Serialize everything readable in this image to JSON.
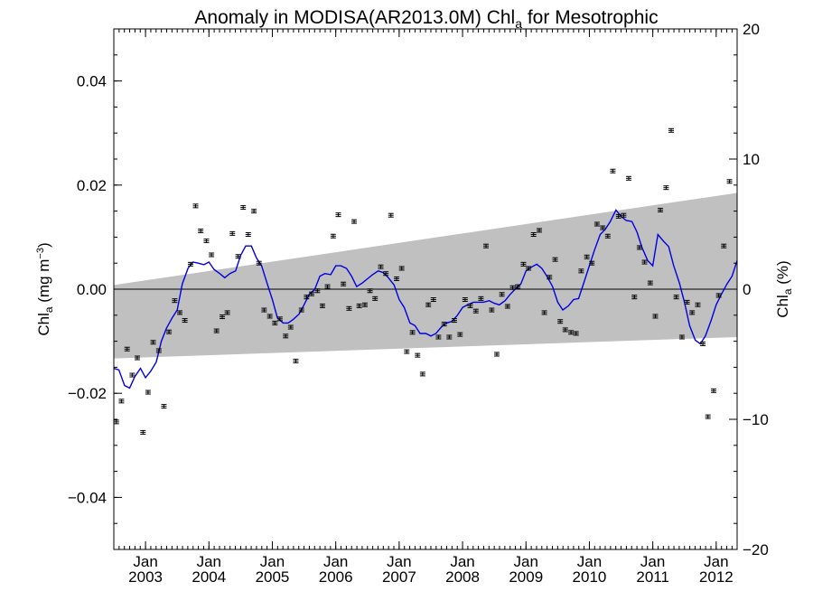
{
  "chart_data": {
    "type": "line",
    "title": {
      "main": "Anomaly in MODISA(AR2013.0M) Chl",
      "sub": "a",
      "tail": " for Mesotrophic"
    },
    "ylabel_left": {
      "main": "Chl",
      "sub": "a",
      "units": " (mg m",
      "sup": "−3",
      "close": ")"
    },
    "ylabel_right": {
      "main": "Chl",
      "sub": "a",
      "units": " (%)"
    },
    "xlim": [
      2002.5,
      2012.33
    ],
    "ylim": [
      -0.05,
      0.05
    ],
    "ylim_right": [
      -20,
      20
    ],
    "x_ticks": [
      {
        "month": "Jan",
        "year": "2003",
        "x": 2003.0
      },
      {
        "month": "Jan",
        "year": "2004",
        "x": 2004.0
      },
      {
        "month": "Jan",
        "year": "2005",
        "x": 2005.0
      },
      {
        "month": "Jan",
        "year": "2006",
        "x": 2006.0
      },
      {
        "month": "Jan",
        "year": "2007",
        "x": 2007.0
      },
      {
        "month": "Jan",
        "year": "2008",
        "x": 2008.0
      },
      {
        "month": "Jan",
        "year": "2009",
        "x": 2009.0
      },
      {
        "month": "Jan",
        "year": "2010",
        "x": 2010.0
      },
      {
        "month": "Jan",
        "year": "2011",
        "x": 2011.0
      },
      {
        "month": "Jan",
        "year": "2012",
        "x": 2012.0
      }
    ],
    "y_ticks_left": [
      {
        "value": 0.04,
        "label": "0.04"
      },
      {
        "value": 0.02,
        "label": "0.02"
      },
      {
        "value": 0.0,
        "label": "0.00"
      },
      {
        "value": -0.02,
        "label": "−0.02"
      },
      {
        "value": -0.04,
        "label": "−0.04"
      }
    ],
    "y_ticks_right": [
      {
        "value": 20,
        "label": "20"
      },
      {
        "value": 10,
        "label": "10"
      },
      {
        "value": 0,
        "label": "0"
      },
      {
        "value": -10,
        "label": "−10"
      },
      {
        "value": -20,
        "label": "−20"
      }
    ],
    "trend_band": {
      "x": [
        2002.5,
        2012.33
      ],
      "upper": [
        0.0008,
        0.0185
      ],
      "lower": [
        -0.0133,
        -0.0092
      ]
    },
    "series": [
      {
        "style": "points-with-errorbars",
        "color": "#000000",
        "points": [
          [
            2002.54,
            -0.0255
          ],
          [
            2002.62,
            -0.0215
          ],
          [
            2002.71,
            -0.0115
          ],
          [
            2002.79,
            -0.0165
          ],
          [
            2002.87,
            -0.0132
          ],
          [
            2002.96,
            -0.0275
          ],
          [
            2003.04,
            -0.0198
          ],
          [
            2003.12,
            -0.0102
          ],
          [
            2003.21,
            -0.0118
          ],
          [
            2003.29,
            -0.0225
          ],
          [
            2003.37,
            -0.0082
          ],
          [
            2003.46,
            -0.0022
          ],
          [
            2003.54,
            -0.0045
          ],
          [
            2003.62,
            -0.006
          ],
          [
            2003.71,
            0.0048
          ],
          [
            2003.79,
            0.016
          ],
          [
            2003.87,
            0.0112
          ],
          [
            2003.96,
            0.0093
          ],
          [
            2004.04,
            0.0066
          ],
          [
            2004.12,
            -0.008
          ],
          [
            2004.21,
            -0.0053
          ],
          [
            2004.29,
            -0.0045
          ],
          [
            2004.37,
            0.0107
          ],
          [
            2004.46,
            0.0063
          ],
          [
            2004.54,
            0.0157
          ],
          [
            2004.62,
            0.0105
          ],
          [
            2004.71,
            0.015
          ],
          [
            2004.79,
            0.005
          ],
          [
            2004.87,
            -0.004
          ],
          [
            2004.96,
            -0.0052
          ],
          [
            2005.04,
            -0.0065
          ],
          [
            2005.12,
            -0.0057
          ],
          [
            2005.21,
            -0.009
          ],
          [
            2005.29,
            -0.0073
          ],
          [
            2005.37,
            -0.0138
          ],
          [
            2005.46,
            -0.004
          ],
          [
            2005.54,
            -0.0015
          ],
          [
            2005.62,
            -0.0009
          ],
          [
            2005.71,
            -0.0003
          ],
          [
            2005.79,
            -0.0032
          ],
          [
            2005.87,
            0.0005
          ],
          [
            2005.96,
            0.0102
          ],
          [
            2006.04,
            0.0143
          ],
          [
            2006.12,
            0.001
          ],
          [
            2006.21,
            -0.0037
          ],
          [
            2006.29,
            0.013
          ],
          [
            2006.37,
            -0.0032
          ],
          [
            2006.46,
            -0.003
          ],
          [
            2006.54,
            -0.0003
          ],
          [
            2006.62,
            -0.0018
          ],
          [
            2006.71,
            0.0043
          ],
          [
            2006.79,
            0.003
          ],
          [
            2006.87,
            0.0142
          ],
          [
            2006.96,
            0.002
          ],
          [
            2007.04,
            0.004
          ],
          [
            2007.12,
            -0.012
          ],
          [
            2007.21,
            -0.0083
          ],
          [
            2007.29,
            -0.0127
          ],
          [
            2007.37,
            -0.0163
          ],
          [
            2007.46,
            -0.003
          ],
          [
            2007.54,
            -0.002
          ],
          [
            2007.62,
            -0.0092
          ],
          [
            2007.71,
            -0.0067
          ],
          [
            2007.79,
            -0.0092
          ],
          [
            2007.87,
            -0.006
          ],
          [
            2007.96,
            -0.0087
          ],
          [
            2008.04,
            -0.002
          ],
          [
            2008.12,
            -0.0032
          ],
          [
            2008.21,
            -0.0042
          ],
          [
            2008.29,
            -0.0018
          ],
          [
            2008.37,
            0.0083
          ],
          [
            2008.46,
            -0.004
          ],
          [
            2008.54,
            -0.0125
          ],
          [
            2008.62,
            -0.001
          ],
          [
            2008.71,
            -0.0033
          ],
          [
            2008.79,
            0.0003
          ],
          [
            2008.87,
            0.0005
          ],
          [
            2008.96,
            0.0048
          ],
          [
            2009.04,
            0.004
          ],
          [
            2009.12,
            0.0105
          ],
          [
            2009.21,
            0.0113
          ],
          [
            2009.29,
            -0.0045
          ],
          [
            2009.37,
            0.0023
          ],
          [
            2009.46,
            0.0057
          ],
          [
            2009.54,
            -0.0062
          ],
          [
            2009.62,
            -0.0078
          ],
          [
            2009.71,
            -0.0083
          ],
          [
            2009.79,
            -0.0085
          ],
          [
            2009.87,
            0.0035
          ],
          [
            2009.96,
            0.0062
          ],
          [
            2010.04,
            0.005
          ],
          [
            2010.12,
            0.0125
          ],
          [
            2010.21,
            0.0118
          ],
          [
            2010.29,
            0.0102
          ],
          [
            2010.37,
            0.0227
          ],
          [
            2010.46,
            0.014
          ],
          [
            2010.54,
            0.0142
          ],
          [
            2010.62,
            0.0213
          ],
          [
            2010.71,
            -0.0015
          ],
          [
            2010.79,
            0.008
          ],
          [
            2010.87,
            0.0052
          ],
          [
            2010.96,
            0.0012
          ],
          [
            2011.04,
            -0.0052
          ],
          [
            2011.12,
            0.0152
          ],
          [
            2011.21,
            0.0195
          ],
          [
            2011.29,
            0.0305
          ],
          [
            2011.37,
            -0.0015
          ],
          [
            2011.46,
            -0.0092
          ],
          [
            2011.54,
            -0.0025
          ],
          [
            2011.62,
            -0.0045
          ],
          [
            2011.71,
            -0.003
          ],
          [
            2011.79,
            -0.0105
          ],
          [
            2011.87,
            -0.0245
          ],
          [
            2011.96,
            -0.0195
          ],
          [
            2012.04,
            -0.0012
          ],
          [
            2012.12,
            0.0083
          ],
          [
            2012.21,
            0.0207
          ]
        ]
      },
      {
        "style": "line",
        "color": "#0000e0",
        "points": [
          [
            2002.5,
            -0.0152
          ],
          [
            2002.58,
            -0.0155
          ],
          [
            2002.67,
            -0.0185
          ],
          [
            2002.75,
            -0.019
          ],
          [
            2002.83,
            -0.0168
          ],
          [
            2002.92,
            -0.0152
          ],
          [
            2003.0,
            -0.017
          ],
          [
            2003.08,
            -0.0158
          ],
          [
            2003.17,
            -0.014
          ],
          [
            2003.25,
            -0.01
          ],
          [
            2003.33,
            -0.0075
          ],
          [
            2003.42,
            -0.0055
          ],
          [
            2003.5,
            -0.004
          ],
          [
            2003.58,
            0.001
          ],
          [
            2003.67,
            0.004
          ],
          [
            2003.75,
            0.0052
          ],
          [
            2003.83,
            0.005
          ],
          [
            2003.92,
            0.0047
          ],
          [
            2004.0,
            0.0052
          ],
          [
            2004.08,
            0.0038
          ],
          [
            2004.17,
            0.003
          ],
          [
            2004.25,
            0.0022
          ],
          [
            2004.33,
            0.003
          ],
          [
            2004.42,
            0.0035
          ],
          [
            2004.5,
            0.0065
          ],
          [
            2004.58,
            0.0083
          ],
          [
            2004.67,
            0.0083
          ],
          [
            2004.75,
            0.006
          ],
          [
            2004.83,
            0.0045
          ],
          [
            2004.92,
            0.001
          ],
          [
            2005.0,
            -0.002
          ],
          [
            2005.08,
            -0.0055
          ],
          [
            2005.17,
            -0.0065
          ],
          [
            2005.25,
            -0.0065
          ],
          [
            2005.33,
            -0.0058
          ],
          [
            2005.42,
            -0.0048
          ],
          [
            2005.5,
            -0.003
          ],
          [
            2005.58,
            -0.001
          ],
          [
            2005.67,
            0.0
          ],
          [
            2005.75,
            0.0025
          ],
          [
            2005.83,
            0.003
          ],
          [
            2005.92,
            0.0028
          ],
          [
            2006.0,
            0.0045
          ],
          [
            2006.08,
            0.0045
          ],
          [
            2006.17,
            0.004
          ],
          [
            2006.25,
            0.0025
          ],
          [
            2006.33,
            0.0005
          ],
          [
            2006.42,
            0.0012
          ],
          [
            2006.5,
            0.002
          ],
          [
            2006.58,
            0.0028
          ],
          [
            2006.67,
            0.0035
          ],
          [
            2006.75,
            0.0032
          ],
          [
            2006.83,
            0.0022
          ],
          [
            2006.92,
            0.0008
          ],
          [
            2007.0,
            -0.002
          ],
          [
            2007.08,
            -0.0035
          ],
          [
            2007.17,
            -0.0065
          ],
          [
            2007.25,
            -0.007
          ],
          [
            2007.33,
            -0.0085
          ],
          [
            2007.42,
            -0.0085
          ],
          [
            2007.5,
            -0.009
          ],
          [
            2007.58,
            -0.0085
          ],
          [
            2007.67,
            -0.0072
          ],
          [
            2007.75,
            -0.0065
          ],
          [
            2007.83,
            -0.0062
          ],
          [
            2007.92,
            -0.005
          ],
          [
            2008.0,
            -0.0035
          ],
          [
            2008.08,
            -0.003
          ],
          [
            2008.17,
            -0.0025
          ],
          [
            2008.25,
            -0.0025
          ],
          [
            2008.33,
            -0.0025
          ],
          [
            2008.42,
            -0.0022
          ],
          [
            2008.5,
            -0.0027
          ],
          [
            2008.58,
            -0.003
          ],
          [
            2008.67,
            -0.0022
          ],
          [
            2008.75,
            -0.001
          ],
          [
            2008.83,
            0.0
          ],
          [
            2008.92,
            0.001
          ],
          [
            2009.0,
            0.0035
          ],
          [
            2009.08,
            0.0042
          ],
          [
            2009.17,
            0.0048
          ],
          [
            2009.25,
            0.004
          ],
          [
            2009.33,
            0.0025
          ],
          [
            2009.42,
            0.0005
          ],
          [
            2009.5,
            -0.0025
          ],
          [
            2009.58,
            -0.004
          ],
          [
            2009.67,
            -0.0032
          ],
          [
            2009.75,
            -0.002
          ],
          [
            2009.83,
            -0.0018
          ],
          [
            2009.92,
            0.0015
          ],
          [
            2010.0,
            0.0045
          ],
          [
            2010.08,
            0.0075
          ],
          [
            2010.17,
            0.0105
          ],
          [
            2010.25,
            0.0115
          ],
          [
            2010.33,
            0.013
          ],
          [
            2010.42,
            0.0152
          ],
          [
            2010.5,
            0.014
          ],
          [
            2010.58,
            0.0132
          ],
          [
            2010.67,
            0.013
          ],
          [
            2010.75,
            0.011
          ],
          [
            2010.83,
            0.008
          ],
          [
            2010.92,
            0.0055
          ],
          [
            2011.0,
            0.0045
          ],
          [
            2011.08,
            0.0105
          ],
          [
            2011.17,
            0.0092
          ],
          [
            2011.25,
            0.0082
          ],
          [
            2011.33,
            0.0045
          ],
          [
            2011.42,
            0.0012
          ],
          [
            2011.5,
            -0.0025
          ],
          [
            2011.58,
            -0.007
          ],
          [
            2011.67,
            -0.0098
          ],
          [
            2011.75,
            -0.0105
          ],
          [
            2011.83,
            -0.009
          ],
          [
            2011.92,
            -0.006
          ],
          [
            2012.0,
            -0.003
          ],
          [
            2012.08,
            -0.001
          ],
          [
            2012.17,
            0.001
          ],
          [
            2012.25,
            0.0025
          ],
          [
            2012.33,
            0.0055
          ]
        ]
      }
    ],
    "zero_line": 0.0,
    "grid": false
  }
}
